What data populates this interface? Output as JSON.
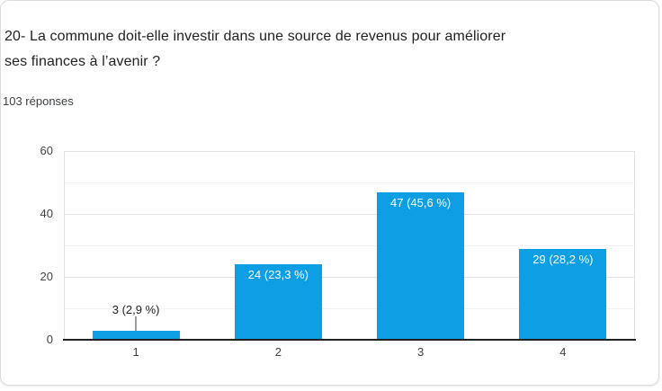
{
  "header": {
    "title": "20- La commune doit-elle investir dans une source de revenus pour améliorer ses finances à l’avenir ?",
    "responses": "103 réponses"
  },
  "chart_data": {
    "type": "bar",
    "title": "20- La commune doit-elle investir dans une source de revenus pour améliorer ses finances à l’avenir ?",
    "categories": [
      "1",
      "2",
      "3",
      "4"
    ],
    "values": [
      3,
      24,
      47,
      29
    ],
    "annotations": [
      "3 (2,9 %)",
      "24 (23,3 %)",
      "47 (45,6 %)",
      "29 (28,2 %)"
    ],
    "total_responses": 103,
    "xlabel": "",
    "ylabel": "",
    "ylim": [
      0,
      60
    ],
    "yticks": [
      0,
      20,
      40,
      60
    ],
    "grid_interval": 10,
    "legend": "none",
    "colors": {
      "bar": "#0d9ee4",
      "annotation_inside": "#ffffff",
      "annotation_outside": "#212121",
      "axis_line": "#212121",
      "gridline_major": "#e3e3e3",
      "gridline_minor": "#f2f2f2",
      "stem": "#9e9e9e"
    }
  }
}
